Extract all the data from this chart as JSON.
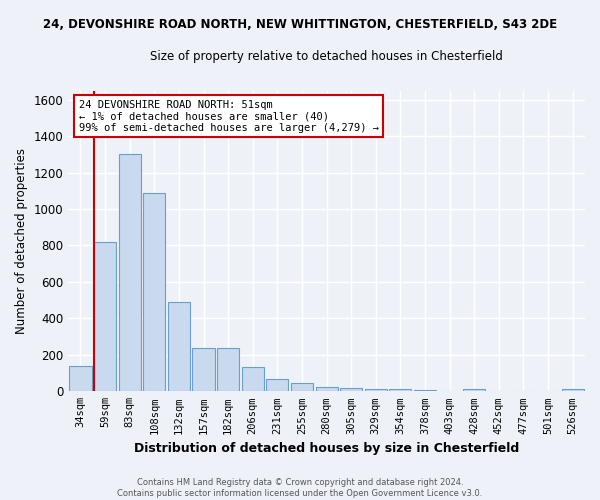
{
  "title_line1": "24, DEVONSHIRE ROAD NORTH, NEW WHITTINGTON, CHESTERFIELD, S43 2DE",
  "title_line2": "Size of property relative to detached houses in Chesterfield",
  "xlabel": "Distribution of detached houses by size in Chesterfield",
  "ylabel": "Number of detached properties",
  "bar_labels": [
    "34sqm",
    "59sqm",
    "83sqm",
    "108sqm",
    "132sqm",
    "157sqm",
    "182sqm",
    "206sqm",
    "231sqm",
    "255sqm",
    "280sqm",
    "305sqm",
    "329sqm",
    "354sqm",
    "378sqm",
    "403sqm",
    "428sqm",
    "452sqm",
    "477sqm",
    "501sqm",
    "526sqm"
  ],
  "bar_heights": [
    140,
    820,
    1300,
    1090,
    490,
    235,
    235,
    135,
    70,
    45,
    25,
    20,
    10,
    15,
    5,
    0,
    15,
    0,
    0,
    0,
    12
  ],
  "bar_color": "#c9d9ee",
  "bar_edge_color": "#6a9fcb",
  "vline_color": "#cc0000",
  "ylim": [
    0,
    1650
  ],
  "yticks": [
    0,
    200,
    400,
    600,
    800,
    1000,
    1200,
    1400,
    1600
  ],
  "annotation_text": "24 DEVONSHIRE ROAD NORTH: 51sqm\n← 1% of detached houses are smaller (40)\n99% of semi-detached houses are larger (4,279) →",
  "annotation_box_color": "#ffffff",
  "annotation_box_edge": "#cc0000",
  "footer_line1": "Contains HM Land Registry data © Crown copyright and database right 2024.",
  "footer_line2": "Contains public sector information licensed under the Open Government Licence v3.0.",
  "background_color": "#eef2f8",
  "grid_color": "#ffffff"
}
